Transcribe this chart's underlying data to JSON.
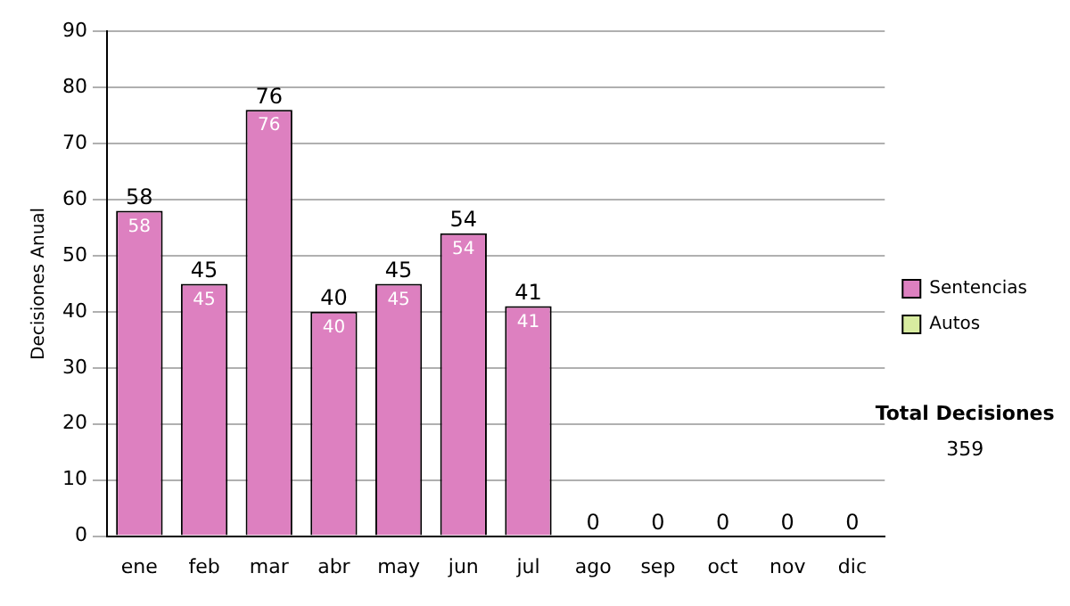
{
  "chart_data": {
    "type": "bar",
    "stacked": true,
    "ylabel": "Decisiones Anual",
    "categories": [
      "ene",
      "feb",
      "mar",
      "abr",
      "may",
      "jun",
      "jul",
      "ago",
      "sep",
      "oct",
      "nov",
      "dic"
    ],
    "series": [
      {
        "name": "Sentencias",
        "color": "#dd80c0",
        "values": [
          58,
          45,
          76,
          40,
          45,
          54,
          41,
          0,
          0,
          0,
          0,
          0
        ],
        "value_labels": [
          "58",
          "45",
          "76",
          "40",
          "45",
          "54",
          "41",
          null,
          null,
          null,
          null,
          null
        ]
      },
      {
        "name": "Autos",
        "color": "#d8eca0",
        "values": [
          0,
          0,
          0,
          0,
          0,
          0,
          0,
          0,
          0,
          0,
          0,
          0
        ]
      }
    ],
    "totals": [
      "58",
      "45",
      "76",
      "40",
      "45",
      "54",
      "41",
      "0",
      "0",
      "0",
      "0",
      "0"
    ],
    "ylim": [
      0,
      90
    ],
    "yticks": [
      0,
      10,
      20,
      30,
      40,
      50,
      60,
      70,
      80,
      90
    ],
    "grid": "y",
    "legend": "right",
    "annotations": [
      "Total Decisiones",
      "359"
    ]
  }
}
